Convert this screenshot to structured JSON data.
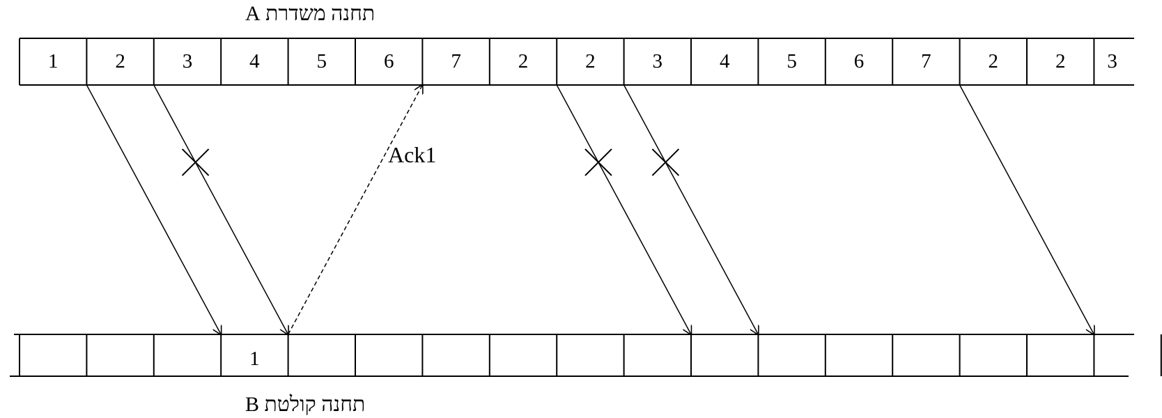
{
  "station_a": {
    "label": "תחנה משדרת A"
  },
  "station_b": {
    "label": "תחנה קולטת B"
  },
  "sender_frames": [
    "1",
    "2",
    "3",
    "4",
    "5",
    "6",
    "7",
    "2",
    "2",
    "3",
    "4",
    "5",
    "6",
    "7",
    "2",
    "2",
    "3"
  ],
  "receiver_slots": [
    "",
    "",
    "",
    "1",
    "",
    "",
    "",
    "",
    "",
    "",
    "",
    "",
    "",
    "",
    "",
    "",
    ""
  ],
  "transmissions": [
    {
      "from_frame": 2,
      "to_slot": 4,
      "lost": false
    },
    {
      "from_frame": 3,
      "to_slot": 5,
      "lost": true
    },
    {
      "from_frame": 9,
      "to_slot": 11,
      "lost": true
    },
    {
      "from_frame": 10,
      "to_slot": 12,
      "lost": true
    },
    {
      "from_frame": 15,
      "to_slot": 17,
      "lost": false
    }
  ],
  "ack": {
    "label": "Ack1",
    "from_slot": 5,
    "to_frame": 7
  },
  "colors": {
    "line": "#000000",
    "background": "#ffffff"
  }
}
